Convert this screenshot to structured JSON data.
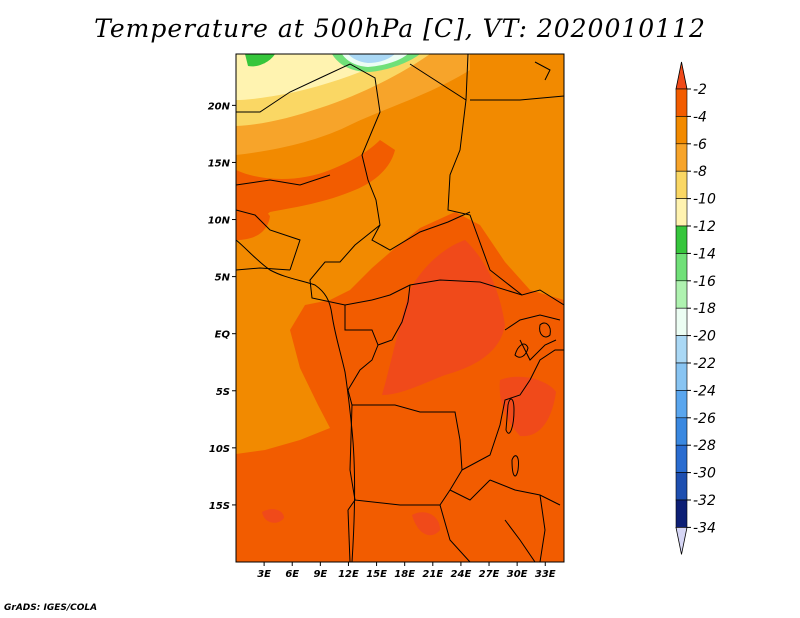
{
  "title": "Temperature at 500hPa [C], VT: 2020010112",
  "credit": "GrADS: IGES/COLA",
  "map": {
    "lon_range": [
      0,
      35
    ],
    "lat_range": [
      -20,
      24.5
    ],
    "x_ticks": [
      {
        "lon": 3,
        "label": "3E"
      },
      {
        "lon": 6,
        "label": "6E"
      },
      {
        "lon": 9,
        "label": "9E"
      },
      {
        "lon": 12,
        "label": "12E"
      },
      {
        "lon": 15,
        "label": "15E"
      },
      {
        "lon": 18,
        "label": "18E"
      },
      {
        "lon": 21,
        "label": "21E"
      },
      {
        "lon": 24,
        "label": "24E"
      },
      {
        "lon": 27,
        "label": "27E"
      },
      {
        "lon": 30,
        "label": "30E"
      },
      {
        "lon": 33,
        "label": "33E"
      }
    ],
    "y_ticks": [
      {
        "lat": 20,
        "label": "20N"
      },
      {
        "lat": 15,
        "label": "15N"
      },
      {
        "lat": 10,
        "label": "10N"
      },
      {
        "lat": 5,
        "label": "5N"
      },
      {
        "lat": 0,
        "label": "EQ"
      },
      {
        "lat": -5,
        "label": "5S"
      },
      {
        "lat": -10,
        "label": "10S"
      },
      {
        "lat": -15,
        "label": "15S"
      }
    ]
  },
  "legend": {
    "labels": [
      "-2",
      "-4",
      "-6",
      "-8",
      "-10",
      "-12",
      "-14",
      "-16",
      "-18",
      "-20",
      "-22",
      "-24",
      "-26",
      "-28",
      "-30",
      "-32",
      "-34"
    ],
    "colors": [
      "#f04a1a",
      "#f25c00",
      "#f28a00",
      "#f7a42a",
      "#fad764",
      "#fff3b0",
      "#36c63c",
      "#70e078",
      "#aff2b0",
      "#ecfdf3",
      "#aad8f5",
      "#88c4f2",
      "#5aa6ee",
      "#3a88e0",
      "#2a6cd0",
      "#1e4fb0",
      "#0d1f75",
      "#d6d6f5"
    ]
  }
}
